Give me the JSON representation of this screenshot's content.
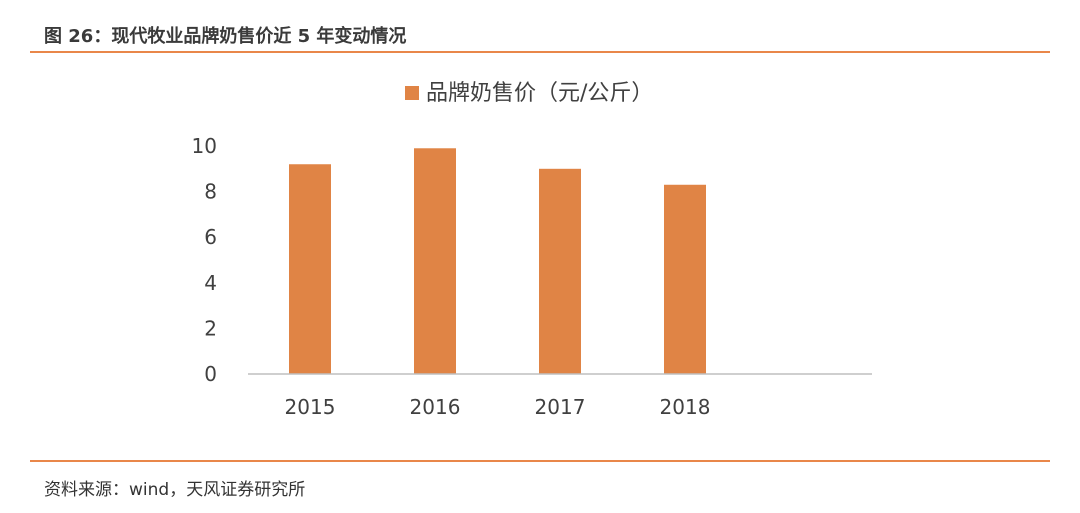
{
  "header": {
    "figure_title": "图 26：现代牧业品牌奶售价近 5 年变动情况"
  },
  "footer": {
    "source": "资料来源：wind，天风证券研究所"
  },
  "colors": {
    "accent_rule": "#e9874a",
    "bar": "#e08445",
    "axis": "#bfbfbf"
  },
  "chart_data": {
    "type": "bar",
    "categories": [
      "2015",
      "2016",
      "2017",
      "2018"
    ],
    "series": [
      {
        "name": "品牌奶售价（元/公斤）",
        "values": [
          9.2,
          9.9,
          9.0,
          8.3
        ]
      }
    ],
    "yticks": [
      "0",
      "2",
      "4",
      "6",
      "8",
      "10"
    ],
    "ylim": [
      0,
      10
    ],
    "legend_position": "top-center",
    "grid": false
  }
}
